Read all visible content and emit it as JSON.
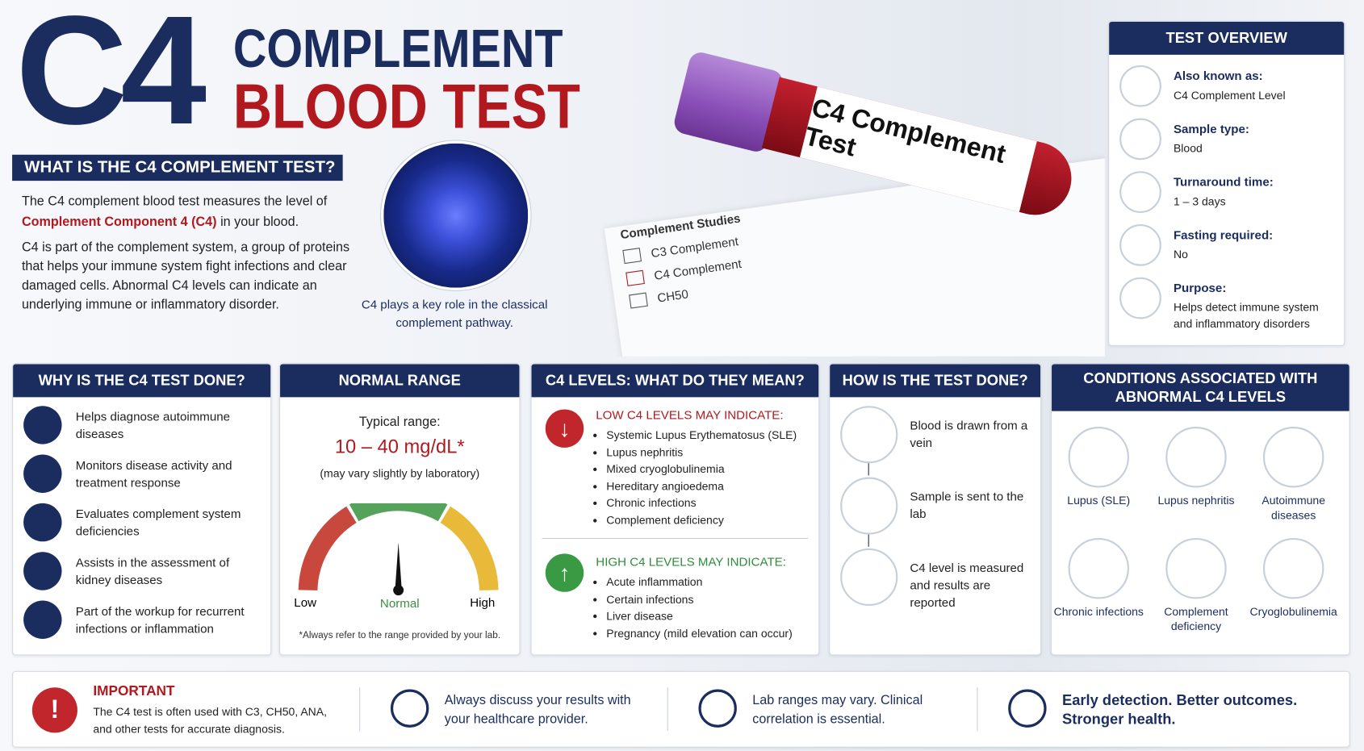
{
  "header": {
    "title_big": "C4",
    "title_line1": "COMPLEMENT",
    "title_line2": "BLOOD TEST"
  },
  "what": {
    "heading": "WHAT IS THE C4 COMPLEMENT TEST?",
    "p1_before": "The C4 complement blood test measures the level of",
    "p1_highlight": "Complement Component 4 (C4)",
    "p1_after": "in your blood.",
    "p2": "C4 is part of the complement system, a group of proteins that helps your immune system fight infections and clear damaged cells. Abnormal C4 levels can indicate an underlying immune or inflammatory disorder.",
    "caption": "C4 plays a key role in the classical complement pathway."
  },
  "photo": {
    "label": "C4 Complement Test",
    "form_title": "Complement Studies",
    "form_items": [
      "C3 Complement",
      "C4 Complement",
      "CH50"
    ]
  },
  "overview": {
    "heading": "TEST OVERVIEW",
    "items": [
      {
        "label": "Also known as:",
        "value": "C4 Complement Level"
      },
      {
        "label": "Sample type:",
        "value": "Blood"
      },
      {
        "label": "Turnaround time:",
        "value": "1 – 3 days"
      },
      {
        "label": "Fasting required:",
        "value": "No"
      },
      {
        "label": "Purpose:",
        "value": "Helps detect immune system and inflammatory disorders"
      }
    ]
  },
  "why": {
    "heading": "WHY IS THE C4 TEST DONE?",
    "items": [
      "Helps diagnose autoimmune diseases",
      "Monitors disease activity and treatment response",
      "Evaluates complement system deficiencies",
      "Assists in the assessment of kidney diseases",
      "Part of the workup for recurrent infections or inflammation"
    ]
  },
  "normal": {
    "heading": "NORMAL RANGE",
    "typical": "Typical range:",
    "range": "10 – 40 mg/dL*",
    "note": "(may vary slightly by laboratory)",
    "gauge_labels": [
      "Low",
      "Normal",
      "High"
    ],
    "footnote": "*Always refer to the range provided by your lab."
  },
  "levels": {
    "heading": "C4 LEVELS: WHAT DO THEY MEAN?",
    "low": {
      "title": "LOW C4 LEVELS MAY INDICATE:",
      "items": [
        "Systemic Lupus Erythematosus (SLE)",
        "Lupus nephritis",
        "Mixed cryoglobulinemia",
        "Hereditary angioedema",
        "Chronic infections",
        "Complement deficiency"
      ]
    },
    "high": {
      "title": "HIGH C4 LEVELS MAY INDICATE:",
      "items": [
        "Acute inflammation",
        "Certain infections",
        "Liver disease",
        "Pregnancy (mild elevation can occur)"
      ]
    }
  },
  "how": {
    "heading": "HOW IS THE TEST DONE?",
    "steps": [
      "Blood is drawn from a vein",
      "Sample is sent to the lab",
      "C4 level is measured and results are reported"
    ]
  },
  "conditions": {
    "heading": "CONDITIONS ASSOCIATED WITH ABNORMAL C4 LEVELS",
    "items": [
      "Lupus (SLE)",
      "Lupus nephritis",
      "Autoimmune diseases",
      "Chronic infections",
      "Complement deficiency",
      "Cryoglobulinemia"
    ]
  },
  "footer": {
    "important_title": "IMPORTANT",
    "important_text": "The C4 test is often used with C3, CH50, ANA, and other tests for accurate diagnosis.",
    "messages": [
      "Always discuss your results with your healthcare provider.",
      "Lab ranges may vary. Clinical correlation is essential.",
      "Early detection. Better outcomes. Stronger health."
    ]
  }
}
